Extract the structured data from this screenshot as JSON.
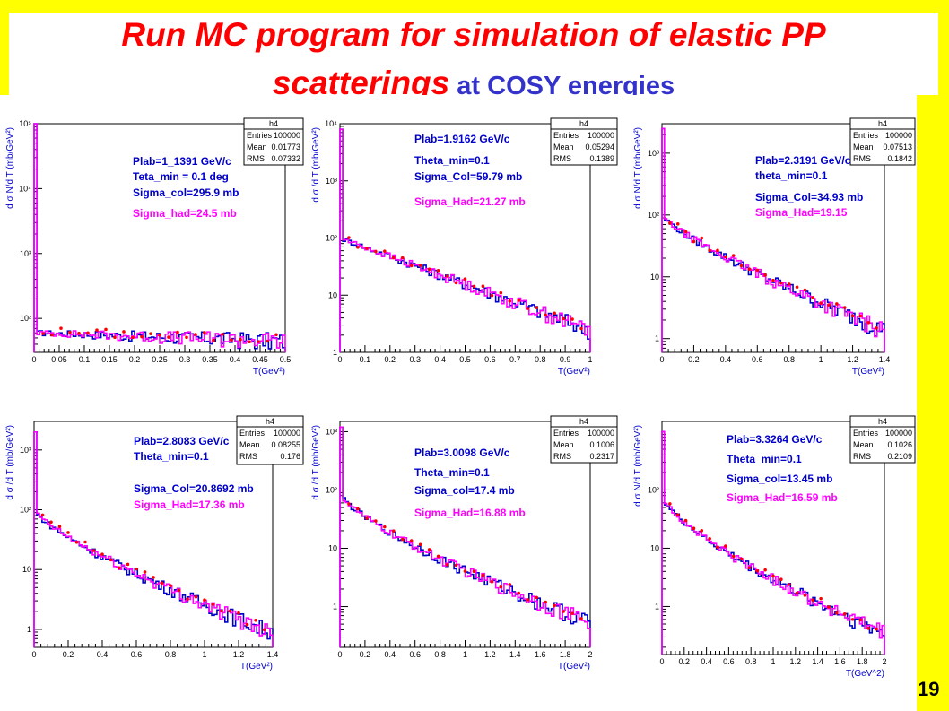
{
  "title": {
    "line1": "Run MC program for  simulation of elastic PP",
    "line2_italic": "scatterings",
    "line2_rest": " at COSY energies"
  },
  "slide_number": "19",
  "colors": {
    "background": "#ffff00",
    "title_red": "#ff0000",
    "title_blue": "#3333cc",
    "series_blue": "#0000cc",
    "series_magenta": "#ff00ff",
    "dots": "#ff0000"
  },
  "chart_data": [
    {
      "type": "line",
      "stats": {
        "name": "h4",
        "rows": [
          [
            "Entries",
            "100000"
          ],
          [
            "Mean",
            "0.01773"
          ],
          [
            "RMS",
            "0.07332"
          ]
        ]
      },
      "annotations": [
        {
          "text": "Plab=1_1391 GeV/c",
          "color": "#0000cc"
        },
        {
          "text": "Teta_min = 0.1 deg",
          "color": "#0000cc"
        },
        {
          "text": "Sigma_col=295.9 mb",
          "color": "#0000cc"
        },
        {
          "text": "Sigma_had=24.5 mb",
          "color": "#ff00ff"
        }
      ],
      "xlabel": "T(GeV²)",
      "ylabel": "d σ  N/d T  (mb/GeV²)",
      "xlim": [
        0,
        0.5
      ],
      "xticks": [
        "0",
        "0.05",
        "0.1",
        "0.15",
        "0.2",
        "0.25",
        "0.3",
        "0.35",
        "0.4",
        "0.45",
        "0.5"
      ],
      "ylog": true,
      "ylim": [
        30,
        100000
      ],
      "yticks": [
        {
          "v": 100,
          "label": "10²"
        },
        {
          "v": 1000,
          "label": "10³"
        },
        {
          "v": 10000,
          "label": "10⁴"
        },
        {
          "v": 100000,
          "label": "10⁵"
        }
      ],
      "curve": {
        "kind": "spike",
        "peak": 100000,
        "floor": 40,
        "base_start": 60,
        "base_end": 45,
        "decay": 0.5
      }
    },
    {
      "type": "line",
      "stats": {
        "name": "h4",
        "rows": [
          [
            "Entries",
            "100000"
          ],
          [
            "Mean",
            "0.05294"
          ],
          [
            "RMS",
            "0.1389"
          ]
        ]
      },
      "annotations": [
        {
          "text": "Plab=1.9162 GeV/c",
          "color": "#0000cc"
        },
        {
          "text": "Theta_min=0.1",
          "color": "#0000cc"
        },
        {
          "text": "Sigma_Col=59.79 mb",
          "color": "#0000cc"
        },
        {
          "text": "Sigma_Had=21.27 mb",
          "color": "#ff00ff"
        }
      ],
      "xlabel": "T(GeV²)",
      "ylabel": "d σ  /d T  (mb/GeV²)",
      "xlim": [
        0,
        1
      ],
      "xticks": [
        "0",
        "0.1",
        "0.2",
        "0.3",
        "0.4",
        "0.5",
        "0.6",
        "0.7",
        "0.8",
        "0.9",
        "1"
      ],
      "ylog": true,
      "ylim": [
        1,
        10000
      ],
      "yticks": [
        {
          "v": 1,
          "label": "1"
        },
        {
          "v": 10,
          "label": "10"
        },
        {
          "v": 100,
          "label": "10²"
        },
        {
          "v": 1000,
          "label": "10³"
        },
        {
          "v": 10000,
          "label": "10⁴"
        }
      ],
      "curve": {
        "kind": "spike",
        "peak": 8000,
        "floor": 2,
        "base_start": 100,
        "base_end": 2.5,
        "decay": 0.45
      }
    },
    {
      "type": "line",
      "stats": {
        "name": "h4",
        "rows": [
          [
            "Entries",
            "100000"
          ],
          [
            "Mean",
            "0.07513"
          ],
          [
            "RMS",
            "0.1842"
          ]
        ]
      },
      "annotations": [
        {
          "text": "Plab=2.3191 GeV/c",
          "color": "#0000cc"
        },
        {
          "text": "theta_min=0.1",
          "color": "#0000cc"
        },
        {
          "text": "Sigma_Col=34.93 mb",
          "color": "#0000cc"
        },
        {
          "text": "Sigma_Had=19.15",
          "color": "#ff00ff"
        }
      ],
      "xlabel": "T(GeV²)",
      "ylabel": "d σ  N/d T  (mb/GeV²)",
      "xlim": [
        0,
        1.4
      ],
      "xticks": [
        "0",
        "0.2",
        "0.4",
        "0.6",
        "0.8",
        "1",
        "1.2",
        "1.4"
      ],
      "ylog": true,
      "ylim": [
        0.6,
        3000
      ],
      "yticks": [
        {
          "v": 1,
          "label": "1"
        },
        {
          "v": 10,
          "label": "10"
        },
        {
          "v": 100,
          "label": "10²"
        },
        {
          "v": 1000,
          "label": "10³"
        }
      ],
      "curve": {
        "kind": "spike",
        "peak": 2500,
        "floor": 1.3,
        "base_start": 100,
        "base_end": 1.4,
        "decay": 0.25
      }
    },
    {
      "type": "line",
      "stats": {
        "name": "h4",
        "rows": [
          [
            "Entries",
            "100000"
          ],
          [
            "Mean",
            "0.08255"
          ],
          [
            "RMS",
            "0.176"
          ]
        ]
      },
      "annotations": [
        {
          "text": "Plab=2.8083 GeV/c",
          "color": "#0000cc"
        },
        {
          "text": "Theta_min=0.1",
          "color": "#0000cc"
        },
        {
          "text": "Sigma_Col=20.8692 mb",
          "color": "#0000cc"
        },
        {
          "text": "Sigma_Had=17.36 mb",
          "color": "#ff00ff"
        }
      ],
      "xlabel": "T(GeV²)",
      "ylabel": "d σ  /d T  (mb/GeV²)",
      "xlim": [
        0,
        1.4
      ],
      "xticks": [
        "0",
        "0.2",
        "0.4",
        "0.6",
        "0.8",
        "1",
        "1.2",
        "1.4"
      ],
      "ylog": true,
      "ylim": [
        0.5,
        3000
      ],
      "yticks": [
        {
          "v": 1,
          "label": "1"
        },
        {
          "v": 10,
          "label": "10"
        },
        {
          "v": 100,
          "label": "10²"
        },
        {
          "v": 1000,
          "label": "10³"
        }
      ],
      "curve": {
        "kind": "spike",
        "peak": 2000,
        "floor": 0.9,
        "base_start": 100,
        "base_end": 0.9,
        "decay": 0.22
      }
    },
    {
      "type": "line",
      "stats": {
        "name": "h4",
        "rows": [
          [
            "Entries",
            "100000"
          ],
          [
            "Mean",
            "0.1006"
          ],
          [
            "RMS",
            "0.2317"
          ]
        ]
      },
      "annotations": [
        {
          "text": "Plab=3.0098 GeV/c",
          "color": "#0000cc"
        },
        {
          "text": "Theta_min=0.1",
          "color": "#0000cc"
        },
        {
          "text": "Sigma_col=17.4 mb",
          "color": "#0000cc"
        },
        {
          "text": "Sigma_Had=16.88 mb",
          "color": "#ff00ff"
        }
      ],
      "xlabel": "T(GeV²)",
      "ylabel": "d σ  /d T  (mb/GeV²)",
      "xlim": [
        0,
        2
      ],
      "xticks": [
        "0",
        "0.2",
        "0.4",
        "0.6",
        "0.8",
        "1",
        "1.2",
        "1.4",
        "1.6",
        "1.8",
        "2"
      ],
      "ylog": true,
      "ylim": [
        0.2,
        1500
      ],
      "yticks": [
        {
          "v": 1,
          "label": "1"
        },
        {
          "v": 10,
          "label": "10"
        },
        {
          "v": 100,
          "label": "10²"
        },
        {
          "v": 1000,
          "label": "10³"
        }
      ],
      "curve": {
        "kind": "spike",
        "peak": 1200,
        "floor": 0.5,
        "base_start": 90,
        "base_end": 0.55,
        "decay": 0.18
      }
    },
    {
      "type": "line",
      "stats": {
        "name": "h4",
        "rows": [
          [
            "Entries",
            "100000"
          ],
          [
            "Mean",
            "0.1026"
          ],
          [
            "RMS",
            "0.2109"
          ]
        ]
      },
      "annotations": [
        {
          "text": "Plab=3.3264 GeV/c",
          "color": "#0000cc"
        },
        {
          "text": "Theta_min=0.1",
          "color": "#0000cc"
        },
        {
          "text": "Sigma_col=13.45 mb",
          "color": "#0000cc"
        },
        {
          "text": "Sigma_Had=16.59 mb",
          "color": "#ff00ff"
        }
      ],
      "xlabel": "T(GeV^2)",
      "ylabel": "d σ  N/d T  (mb/GeV²)",
      "xlim": [
        0,
        2
      ],
      "xticks": [
        "0",
        "0.2",
        "0.4",
        "0.6",
        "0.8",
        "1",
        "1.2",
        "1.4",
        "1.6",
        "1.8",
        "2"
      ],
      "ylog": true,
      "ylim": [
        0.15,
        1500
      ],
      "yticks": [
        {
          "v": 1,
          "label": "1"
        },
        {
          "v": 10,
          "label": "10"
        },
        {
          "v": 100,
          "label": "10²"
        }
      ],
      "curve": {
        "kind": "spike",
        "peak": 1000,
        "floor": 0.35,
        "base_start": 80,
        "base_end": 0.35,
        "decay": 0.17
      }
    }
  ]
}
